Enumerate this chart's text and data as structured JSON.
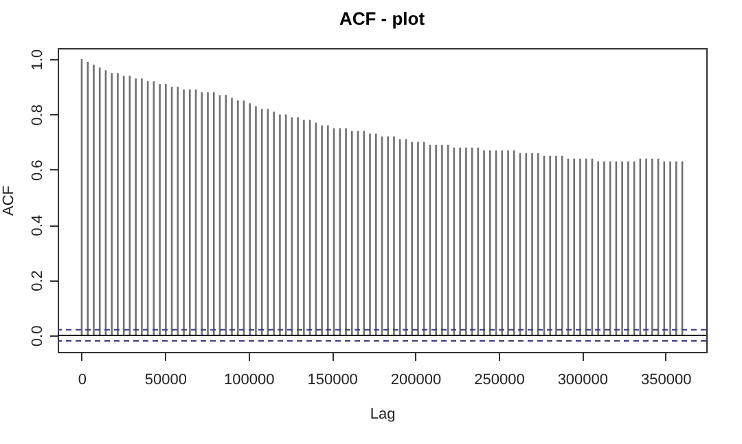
{
  "chart_data": {
    "type": "bar",
    "title": "ACF - plot",
    "xlabel": "Lag",
    "ylabel": "ACF",
    "x": [
      0,
      3600,
      7200,
      10800,
      14400,
      18000,
      21600,
      25200,
      28800,
      32400,
      36000,
      39600,
      43200,
      46800,
      50400,
      54000,
      57600,
      61200,
      64800,
      68400,
      72000,
      75600,
      79200,
      82800,
      86400,
      90000,
      93600,
      97200,
      100800,
      104400,
      108000,
      111600,
      115200,
      118800,
      122400,
      126000,
      129600,
      133200,
      136800,
      140400,
      144000,
      147600,
      151200,
      154800,
      158400,
      162000,
      165600,
      169200,
      172800,
      176400,
      180000,
      183600,
      187200,
      190800,
      194400,
      198000,
      201600,
      205200,
      208800,
      212400,
      216000,
      219600,
      223200,
      226800,
      230400,
      234000,
      237600,
      241200,
      244800,
      248400,
      252000,
      255600,
      259200,
      262800,
      266400,
      270000,
      273600,
      277200,
      280800,
      284400,
      288000,
      291600,
      295200,
      298800,
      302400,
      306000,
      309600,
      313200,
      316800,
      320400,
      324000,
      327600,
      331200,
      334800,
      338400,
      342000,
      345600,
      349200,
      352800,
      356400,
      360000
    ],
    "values": [
      1.0,
      0.99,
      0.98,
      0.97,
      0.96,
      0.95,
      0.95,
      0.94,
      0.94,
      0.93,
      0.93,
      0.92,
      0.92,
      0.91,
      0.91,
      0.9,
      0.9,
      0.89,
      0.89,
      0.89,
      0.88,
      0.88,
      0.88,
      0.87,
      0.87,
      0.86,
      0.85,
      0.85,
      0.84,
      0.83,
      0.82,
      0.82,
      0.81,
      0.8,
      0.8,
      0.79,
      0.79,
      0.78,
      0.78,
      0.77,
      0.76,
      0.76,
      0.75,
      0.75,
      0.75,
      0.74,
      0.74,
      0.74,
      0.73,
      0.73,
      0.72,
      0.72,
      0.72,
      0.71,
      0.71,
      0.7,
      0.7,
      0.7,
      0.69,
      0.69,
      0.69,
      0.69,
      0.68,
      0.68,
      0.68,
      0.68,
      0.68,
      0.67,
      0.67,
      0.67,
      0.67,
      0.67,
      0.67,
      0.66,
      0.66,
      0.66,
      0.66,
      0.65,
      0.65,
      0.65,
      0.65,
      0.64,
      0.64,
      0.64,
      0.64,
      0.64,
      0.63,
      0.63,
      0.63,
      0.63,
      0.63,
      0.63,
      0.63,
      0.64,
      0.64,
      0.64,
      0.64,
      0.63,
      0.63,
      0.63,
      0.63
    ],
    "color": "#707070",
    "xlim": [
      -14400,
      374400
    ],
    "xticks": [
      0,
      50000,
      100000,
      150000,
      200000,
      250000,
      300000,
      350000
    ],
    "ylim": [
      -0.06,
      1.04
    ],
    "yticks": [
      {
        "value": 0,
        "label": "0.0"
      },
      0.2,
      0.4,
      0.6,
      0.8,
      {
        "value": 1,
        "label": "1.0"
      }
    ],
    "ref_lines": [
      {
        "axis": "y",
        "value": 0,
        "color": "#000000",
        "line_style": "solid"
      },
      {
        "axis": "y",
        "value": 0.02,
        "color": "#3a3a8a",
        "line_style": "dashed"
      },
      {
        "axis": "y",
        "value": -0.02,
        "color": "#3a3a8a",
        "line_style": "dashed"
      }
    ],
    "grid": false
  }
}
